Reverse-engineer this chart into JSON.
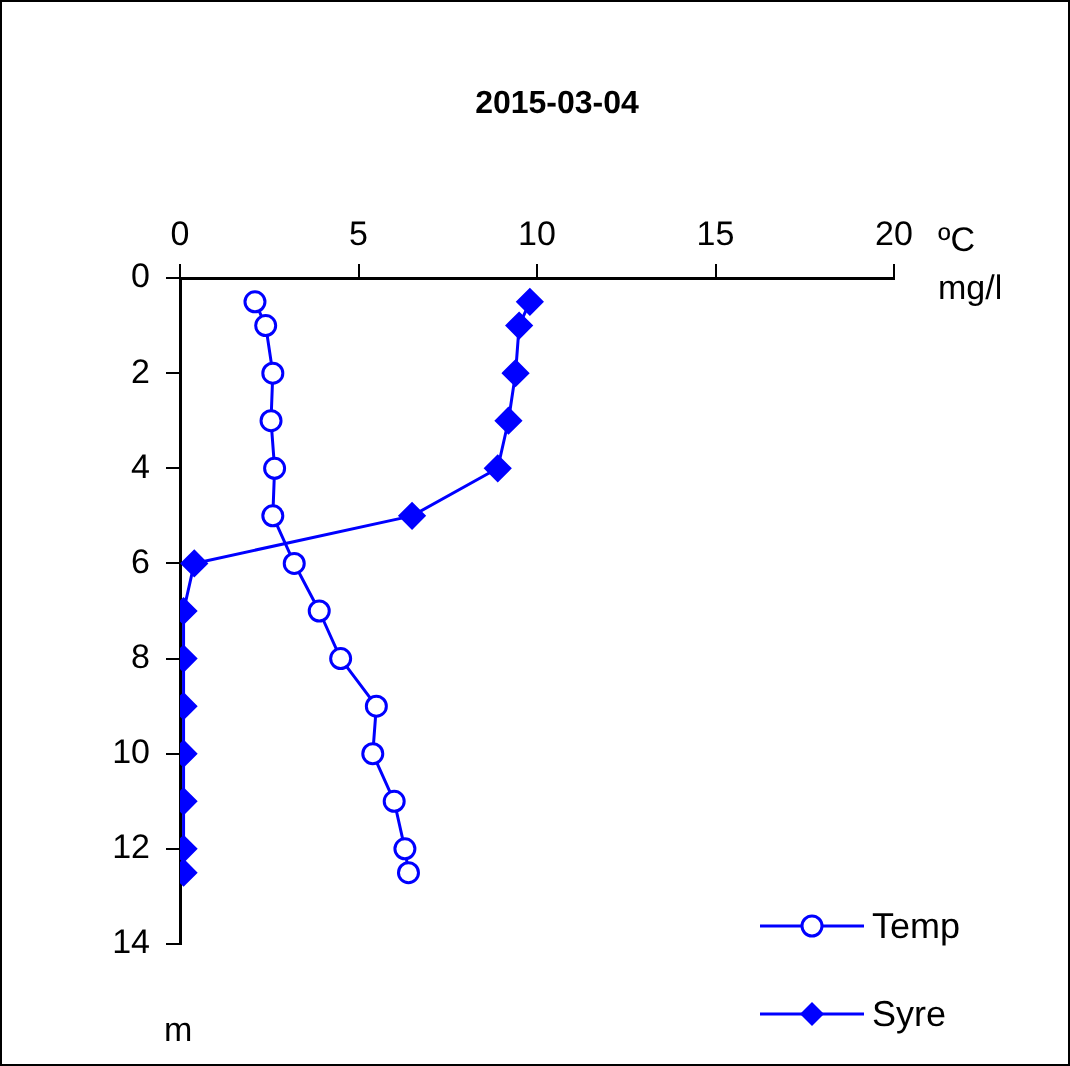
{
  "chart_data": {
    "type": "line",
    "title": "2015-03-04",
    "xlabel": "ºC mg/l",
    "ylabel": "m",
    "xlim": [
      0,
      20
    ],
    "xticks": [
      0,
      5,
      10,
      15,
      20
    ],
    "ylim": [
      14,
      0
    ],
    "yticks": [
      0,
      2,
      4,
      6,
      8,
      10,
      12,
      14
    ],
    "grid": false,
    "legend": "bottom right",
    "line_style": "solid",
    "series": [
      {
        "name": "Temp",
        "color": "#0000ff",
        "marker": "circle",
        "x": [
          2.1,
          2.4,
          2.6,
          2.55,
          2.65,
          2.6,
          3.2,
          3.9,
          4.5,
          5.5,
          5.4,
          6.0,
          6.3,
          6.4
        ],
        "values": [
          0.5,
          1,
          2,
          3,
          4,
          5,
          6,
          7,
          8,
          9,
          10,
          11,
          12,
          12.5
        ]
      },
      {
        "name": "Syre",
        "color": "#0000ff",
        "marker": "diamond",
        "x": [
          9.8,
          9.5,
          9.4,
          9.2,
          8.9,
          6.5,
          0.4,
          0.1,
          0.1,
          0.1,
          0.1,
          0.1,
          0.1,
          0.1
        ],
        "values": [
          0.5,
          1,
          2,
          3,
          4,
          5,
          6,
          7,
          8,
          9,
          10,
          11,
          12,
          12.5
        ]
      }
    ]
  }
}
